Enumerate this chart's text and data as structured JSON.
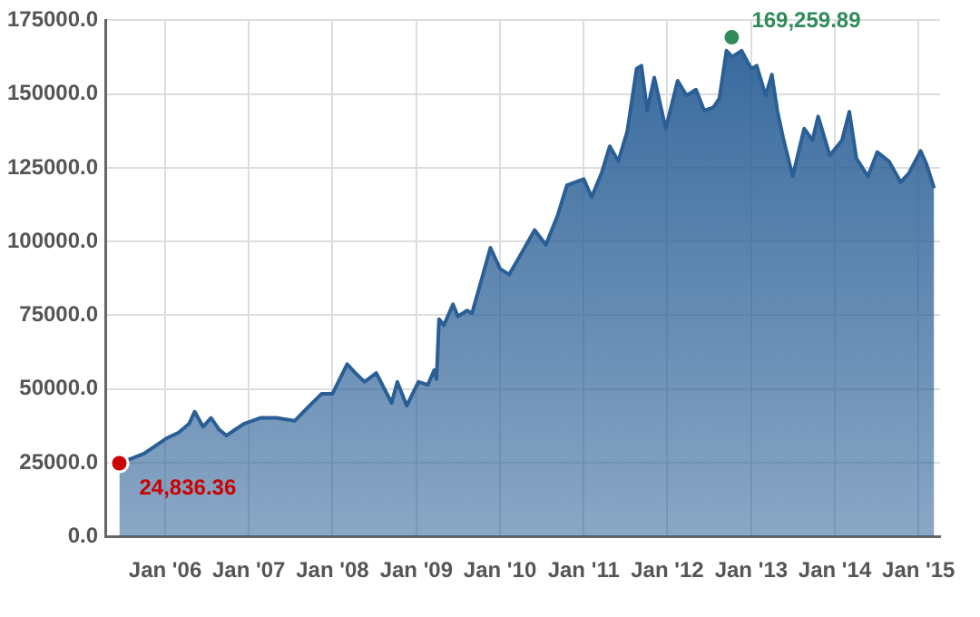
{
  "chart_data": {
    "type": "area",
    "x": [
      "2005-06-15",
      "2005-10-01",
      "2006-01-05",
      "2006-03-01",
      "2006-04-15",
      "2006-05-10",
      "2006-06-15",
      "2006-07-20",
      "2006-08-25",
      "2006-09-25",
      "2006-12-10",
      "2007-02-20",
      "2007-05-01",
      "2007-07-20",
      "2007-09-10",
      "2007-11-15",
      "2008-01-01",
      "2008-03-05",
      "2008-04-10",
      "2008-05-20",
      "2008-07-10",
      "2008-09-15",
      "2008-10-10",
      "2008-11-20",
      "2009-01-10",
      "2009-02-20",
      "2009-03-20",
      "2009-03-30",
      "2009-04-10",
      "2009-05-01",
      "2009-06-10",
      "2009-07-01",
      "2009-08-10",
      "2009-09-01",
      "2009-10-15",
      "2009-11-20",
      "2010-01-01",
      "2010-02-10",
      "2010-03-20",
      "2010-06-01",
      "2010-07-20",
      "2010-09-10",
      "2010-10-20",
      "2011-01-01",
      "2011-02-05",
      "2011-03-20",
      "2011-04-25",
      "2011-06-01",
      "2011-07-10",
      "2011-08-20",
      "2011-09-10",
      "2011-10-05",
      "2011-11-05",
      "2011-12-25",
      "2012-02-15",
      "2012-03-25",
      "2012-05-05",
      "2012-06-10",
      "2012-07-20",
      "2012-08-15",
      "2012-09-15",
      "2012-10-10",
      "2012-11-20",
      "2013-01-01",
      "2013-01-25",
      "2013-03-05",
      "2013-04-01",
      "2013-04-25",
      "2013-05-20",
      "2013-07-01",
      "2013-08-20",
      "2013-09-25",
      "2013-10-20",
      "2013-12-10",
      "2014-02-01",
      "2014-03-05",
      "2014-04-05",
      "2014-05-25",
      "2014-07-05",
      "2014-08-25",
      "2014-10-15",
      "2014-11-20",
      "2015-01-10",
      "2015-02-05",
      "2015-03-10"
    ],
    "series": [
      {
        "color": "#2a5f96",
        "values": [
          24800,
          28100,
          33200,
          35200,
          38200,
          42300,
          37200,
          40200,
          36200,
          34200,
          38200,
          40200,
          40200,
          39200,
          43300,
          48400,
          48400,
          58400,
          55400,
          52400,
          55400,
          45300,
          52400,
          44300,
          52400,
          51400,
          56400,
          53400,
          73700,
          71600,
          78700,
          74600,
          76600,
          75700,
          87800,
          97900,
          90800,
          88800,
          93900,
          103900,
          98900,
          109000,
          119100,
          121200,
          115100,
          123200,
          132300,
          127200,
          137300,
          158600,
          159600,
          144400,
          155600,
          138300,
          154500,
          149500,
          151500,
          144400,
          145500,
          148500,
          164700,
          162600,
          164700,
          158600,
          159600,
          149500,
          156600,
          144400,
          135300,
          122100,
          138300,
          134300,
          142400,
          129200,
          134300,
          144000,
          128200,
          122100,
          130300,
          127200,
          120100,
          123200,
          130700,
          126200,
          118100
        ]
      }
    ],
    "xlim": [
      "2005-04-15",
      "2015-04-05"
    ],
    "xticks": [
      {
        "value": "2006-01-01",
        "label": "Jan '06"
      },
      {
        "value": "2007-01-01",
        "label": "Jan '07"
      },
      {
        "value": "2008-01-01",
        "label": "Jan '08"
      },
      {
        "value": "2009-01-01",
        "label": "Jan '09"
      },
      {
        "value": "2010-01-01",
        "label": "Jan '10"
      },
      {
        "value": "2011-01-01",
        "label": "Jan '11"
      },
      {
        "value": "2012-01-01",
        "label": "Jan '12"
      },
      {
        "value": "2013-01-01",
        "label": "Jan '13"
      },
      {
        "value": "2014-01-01",
        "label": "Jan '14"
      },
      {
        "value": "2015-01-01",
        "label": "Jan '15"
      }
    ],
    "ylim": [
      0,
      175000
    ],
    "yticks": [
      {
        "value": 0,
        "label": "0.0"
      },
      {
        "value": 25000,
        "label": "25000.0"
      },
      {
        "value": 50000,
        "label": "50000.0"
      },
      {
        "value": 75000,
        "label": "75000.0"
      },
      {
        "value": 100000,
        "label": "100000.0"
      },
      {
        "value": 125000,
        "label": "125000.0"
      },
      {
        "value": 150000,
        "label": "150000.0"
      },
      {
        "value": 175000,
        "label": "175000.0"
      }
    ],
    "annotations": [
      {
        "text": "24,836.36",
        "x": "2005-06-15",
        "y": 24836.36
      },
      {
        "text": "169,259.89",
        "x": "2012-10-08",
        "y": 169259.89
      }
    ],
    "grid": true,
    "legend": false
  }
}
